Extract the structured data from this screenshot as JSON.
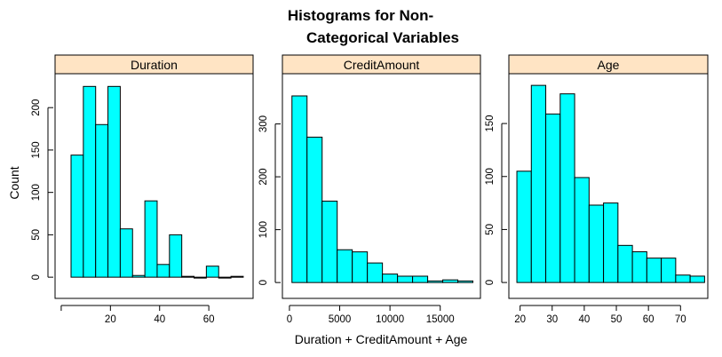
{
  "chart_data": {
    "type": "bar",
    "title_line1": "Histograms for Non-",
    "title_line2": "Categorical Variables",
    "xlabel": "Duration + CreditAmount + Age",
    "ylabel": "Count",
    "colors": {
      "bar_fill": "#00FFFF",
      "strip_fill": "#FFE4C4",
      "stroke": "#000000"
    },
    "panels": [
      {
        "name": "Duration",
        "xlim": [
          -2.5,
          78
        ],
        "ylim": [
          -25,
          240
        ],
        "x_ticks": [
          0,
          20,
          40,
          60
        ],
        "x_tick_labels": [
          "",
          "20",
          "40",
          "60"
        ],
        "y_ticks": [
          0,
          50,
          100,
          150,
          200
        ],
        "bins": [
          [
            4,
            9,
            144
          ],
          [
            9,
            14,
            225
          ],
          [
            14,
            19,
            180
          ],
          [
            19,
            24,
            225
          ],
          [
            24,
            29,
            57
          ],
          [
            29,
            34,
            2
          ],
          [
            34,
            39,
            90
          ],
          [
            39,
            44,
            15
          ],
          [
            44,
            49,
            50
          ],
          [
            49,
            54,
            1
          ],
          [
            54,
            59,
            0
          ],
          [
            59,
            64,
            13
          ],
          [
            64,
            69,
            0
          ],
          [
            69,
            74,
            1
          ]
        ]
      },
      {
        "name": "CreditAmount",
        "xlim": [
          -700,
          19000
        ],
        "ylim": [
          -30,
          395
        ],
        "x_ticks": [
          0,
          5000,
          10000,
          15000
        ],
        "x_tick_labels": [
          "0",
          "5000",
          "10000",
          "15000"
        ],
        "y_ticks": [
          0,
          100,
          200,
          300
        ],
        "bins": [
          [
            250,
            1750,
            353
          ],
          [
            1750,
            3250,
            275
          ],
          [
            3250,
            4750,
            154
          ],
          [
            4750,
            6250,
            62
          ],
          [
            6250,
            7750,
            58
          ],
          [
            7750,
            9250,
            37
          ],
          [
            9250,
            10750,
            16
          ],
          [
            10750,
            12250,
            12
          ],
          [
            12250,
            13750,
            12
          ],
          [
            13750,
            15250,
            3
          ],
          [
            15250,
            16750,
            5
          ],
          [
            16750,
            18250,
            3
          ]
        ]
      },
      {
        "name": "Age",
        "xlim": [
          16.5,
          78.5
        ],
        "ylim": [
          -15,
          197
        ],
        "x_ticks": [
          20,
          30,
          40,
          50,
          60,
          70
        ],
        "x_tick_labels": [
          "20",
          "30",
          "40",
          "50",
          "60",
          "70"
        ],
        "y_ticks": [
          0,
          50,
          100,
          150
        ],
        "bins": [
          [
            19,
            23.5,
            105
          ],
          [
            23.5,
            28,
            186
          ],
          [
            28,
            32.5,
            159
          ],
          [
            32.5,
            37,
            178
          ],
          [
            37,
            41.5,
            99
          ],
          [
            41.5,
            46,
            73
          ],
          [
            46,
            50.5,
            75
          ],
          [
            50.5,
            55,
            35
          ],
          [
            55,
            59.5,
            29
          ],
          [
            59.5,
            64,
            23
          ],
          [
            64,
            68.5,
            23
          ],
          [
            68.5,
            73,
            7
          ],
          [
            73,
            77.5,
            6
          ]
        ]
      }
    ]
  }
}
